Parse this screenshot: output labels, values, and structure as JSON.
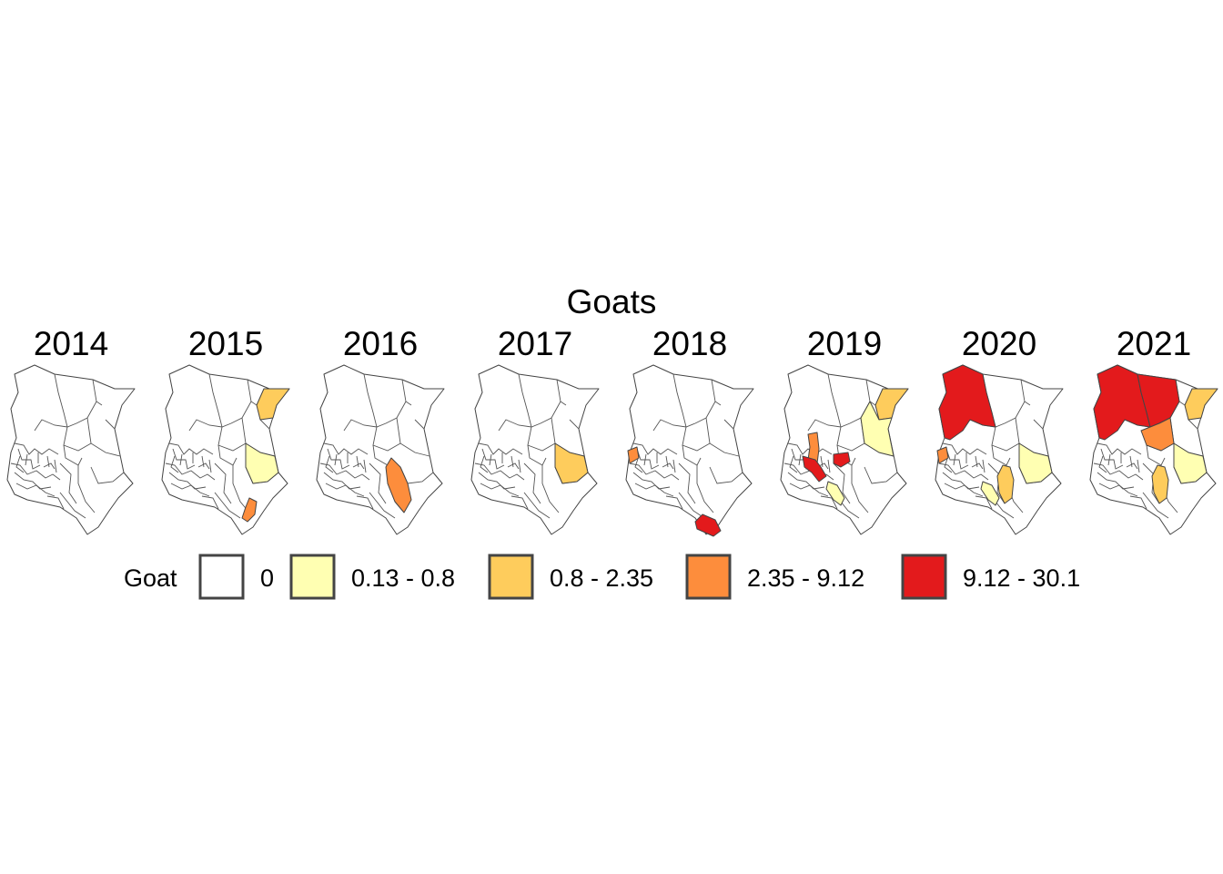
{
  "title": "Goats",
  "legend": {
    "title": "Goat",
    "classes": [
      {
        "label": "0",
        "color": "#ffffff"
      },
      {
        "label": "0.13 - 0.8",
        "color": "#ffffb2"
      },
      {
        "label": "0.8 - 2.35",
        "color": "#fecc5c"
      },
      {
        "label": "2.35 - 9.12",
        "color": "#fd8d3c"
      },
      {
        "label": "9.12 - 30.1",
        "color": "#e31a1c"
      }
    ]
  },
  "panels": [
    {
      "year": "2014",
      "shaded": []
    },
    {
      "year": "2015",
      "shaded": [
        {
          "region": "northeast-tip",
          "class": 2
        },
        {
          "region": "garissa",
          "class": 1
        },
        {
          "region": "coast-lower",
          "class": 3
        }
      ]
    },
    {
      "year": "2016",
      "shaded": [
        {
          "region": "tana",
          "class": 3
        }
      ]
    },
    {
      "year": "2017",
      "shaded": [
        {
          "region": "garissa",
          "class": 2
        }
      ]
    },
    {
      "year": "2018",
      "shaded": [
        {
          "region": "west-edge",
          "class": 3
        },
        {
          "region": "coast-tip",
          "class": 4
        }
      ]
    },
    {
      "year": "2019",
      "shaded": [
        {
          "region": "northeast-tip",
          "class": 2
        },
        {
          "region": "wajir",
          "class": 1
        },
        {
          "region": "rift-a",
          "class": 3
        },
        {
          "region": "rift-b",
          "class": 4
        },
        {
          "region": "central-small",
          "class": 4
        },
        {
          "region": "south-strip",
          "class": 1
        }
      ]
    },
    {
      "year": "2020",
      "shaded": [
        {
          "region": "turkana",
          "class": 4
        },
        {
          "region": "west-edge",
          "class": 3
        },
        {
          "region": "garissa",
          "class": 1
        },
        {
          "region": "kitui",
          "class": 2
        },
        {
          "region": "south-strip",
          "class": 1
        }
      ]
    },
    {
      "year": "2021",
      "shaded": [
        {
          "region": "turkana",
          "class": 4
        },
        {
          "region": "marsabit",
          "class": 4
        },
        {
          "region": "isiolo",
          "class": 3
        },
        {
          "region": "northeast-tip",
          "class": 2
        },
        {
          "region": "garissa",
          "class": 1
        },
        {
          "region": "kitui",
          "class": 2
        }
      ]
    }
  ]
}
